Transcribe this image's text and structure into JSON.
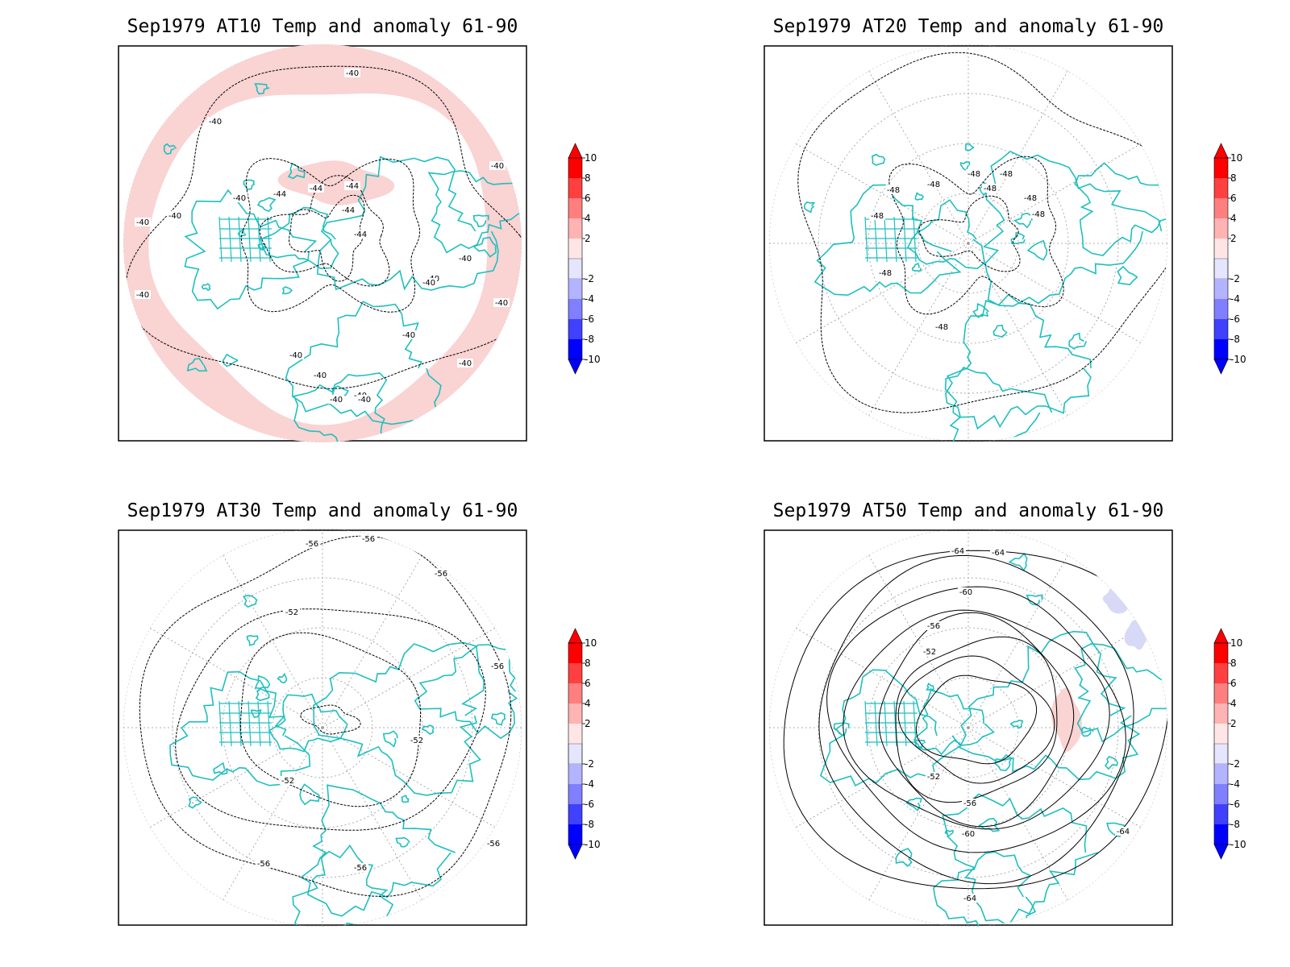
{
  "panels": [
    {
      "title": "Sep1979 AT10 Temp and anomaly 61-90",
      "contour_labels": [
        "-40",
        "-40",
        "-40",
        "-40",
        "-40",
        "-40",
        "-44",
        "-44",
        "-44",
        "-44",
        "-44",
        "-40",
        "-40",
        "-40",
        "-40",
        "-40",
        "-40",
        "-40",
        "-40",
        "-40",
        "-40",
        "-40",
        "-40"
      ],
      "anomaly_shading": "positive 2 to 4"
    },
    {
      "title": "Sep1979 AT20 Temp and anomaly 61-90",
      "contour_labels": [
        "-48",
        "-48",
        "-48",
        "-48",
        "-48",
        "-48",
        "-48",
        "-48",
        "-48",
        "-48"
      ],
      "anomaly_shading": "none"
    },
    {
      "title": "Sep1979 AT30 Temp and anomaly 61-90",
      "contour_labels": [
        "-56",
        "-56",
        "-56",
        "-52",
        "-52",
        "-52",
        "-56",
        "-56",
        "-56",
        "-56"
      ],
      "anomaly_shading": "none"
    },
    {
      "title": "Sep1979 AT50 Temp and anomaly 61-90",
      "contour_labels": [
        "-64",
        "-64",
        "-60",
        "-56",
        "-52",
        "-52",
        "-56",
        "-60",
        "-64",
        "-64"
      ],
      "anomaly_shading": "small negative patch (-2 to -4) and positive patch (2 to 4)"
    }
  ],
  "colorbar": {
    "labels": [
      "10",
      "8",
      "6",
      "4",
      "2",
      "-2",
      "-4",
      "-6",
      "-8",
      "-10"
    ],
    "colors": [
      "#ff0000",
      "#ff4040",
      "#ff7f7f",
      "#ffb3b3",
      "#ffe5e5",
      "#ffffff",
      "#e5e5ff",
      "#b3b3ff",
      "#7f7fff",
      "#4040ff",
      "#0000ff"
    ]
  },
  "style": {
    "coast_color": "#1fbfbf",
    "contour_color": "#000000",
    "grid_color": "#999999",
    "anomaly_pos": "#fad3d3",
    "anomaly_neg": "#d8d8f7"
  }
}
